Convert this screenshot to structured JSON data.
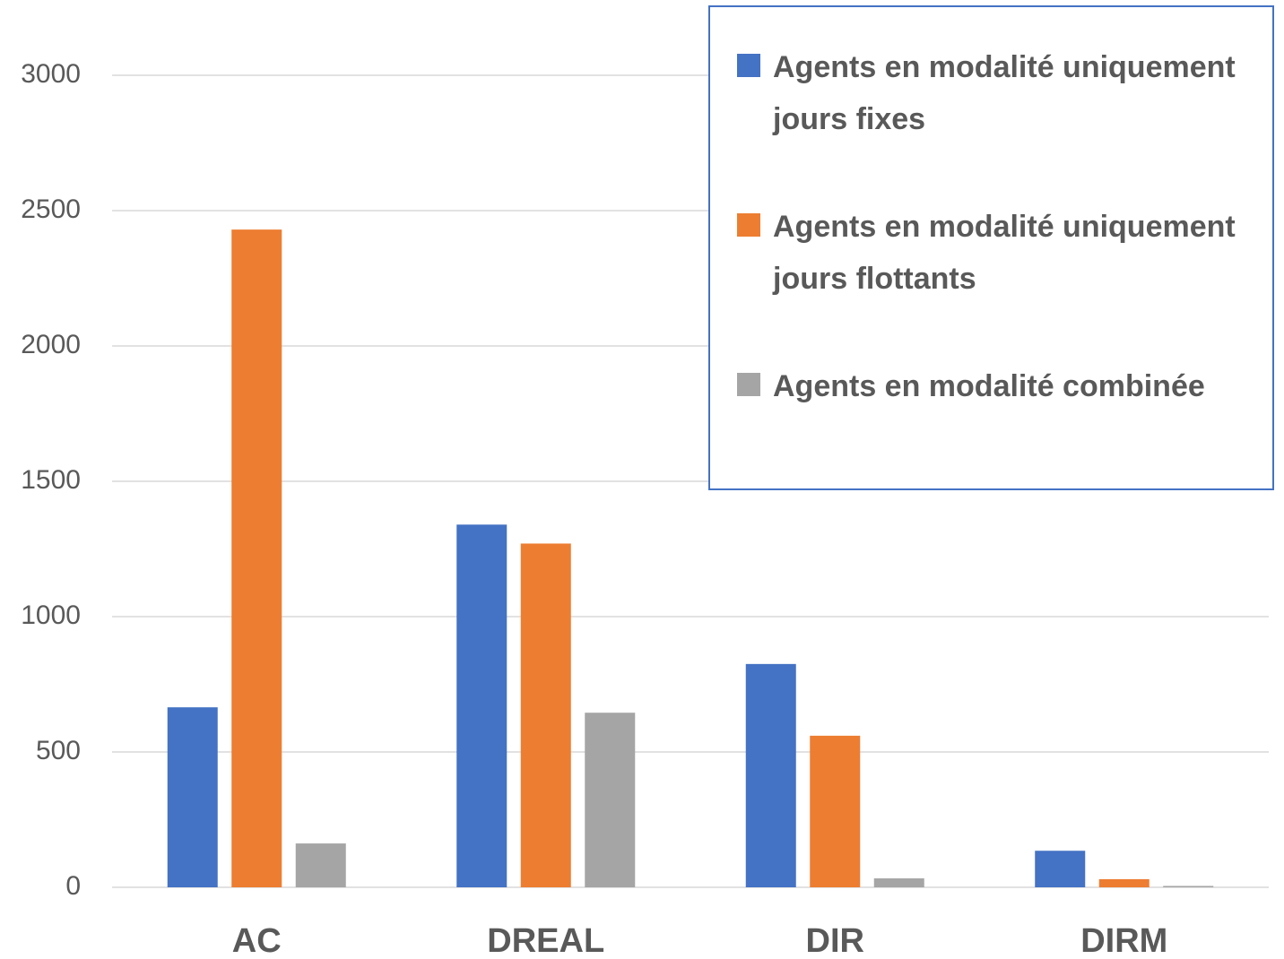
{
  "chart_data": {
    "type": "bar",
    "categories": [
      "AC",
      "DREAL",
      "DIR",
      "DIRM"
    ],
    "series": [
      {
        "name": "Agents en modalité uniquement jours fixes",
        "color": "#4472c4",
        "values": [
          665,
          1340,
          825,
          135
        ]
      },
      {
        "name": "Agents en modalité uniquement jours flottants",
        "color": "#ed7d31",
        "values": [
          2430,
          1270,
          560,
          30
        ]
      },
      {
        "name": "Agents en modalité combinée",
        "color": "#a5a5a5",
        "values": [
          162,
          645,
          33,
          5
        ]
      }
    ],
    "ylim": [
      0,
      3000
    ],
    "yticks": [
      0,
      500,
      1000,
      1500,
      2000,
      2500,
      3000
    ],
    "grid": true,
    "legend": "top-right"
  }
}
